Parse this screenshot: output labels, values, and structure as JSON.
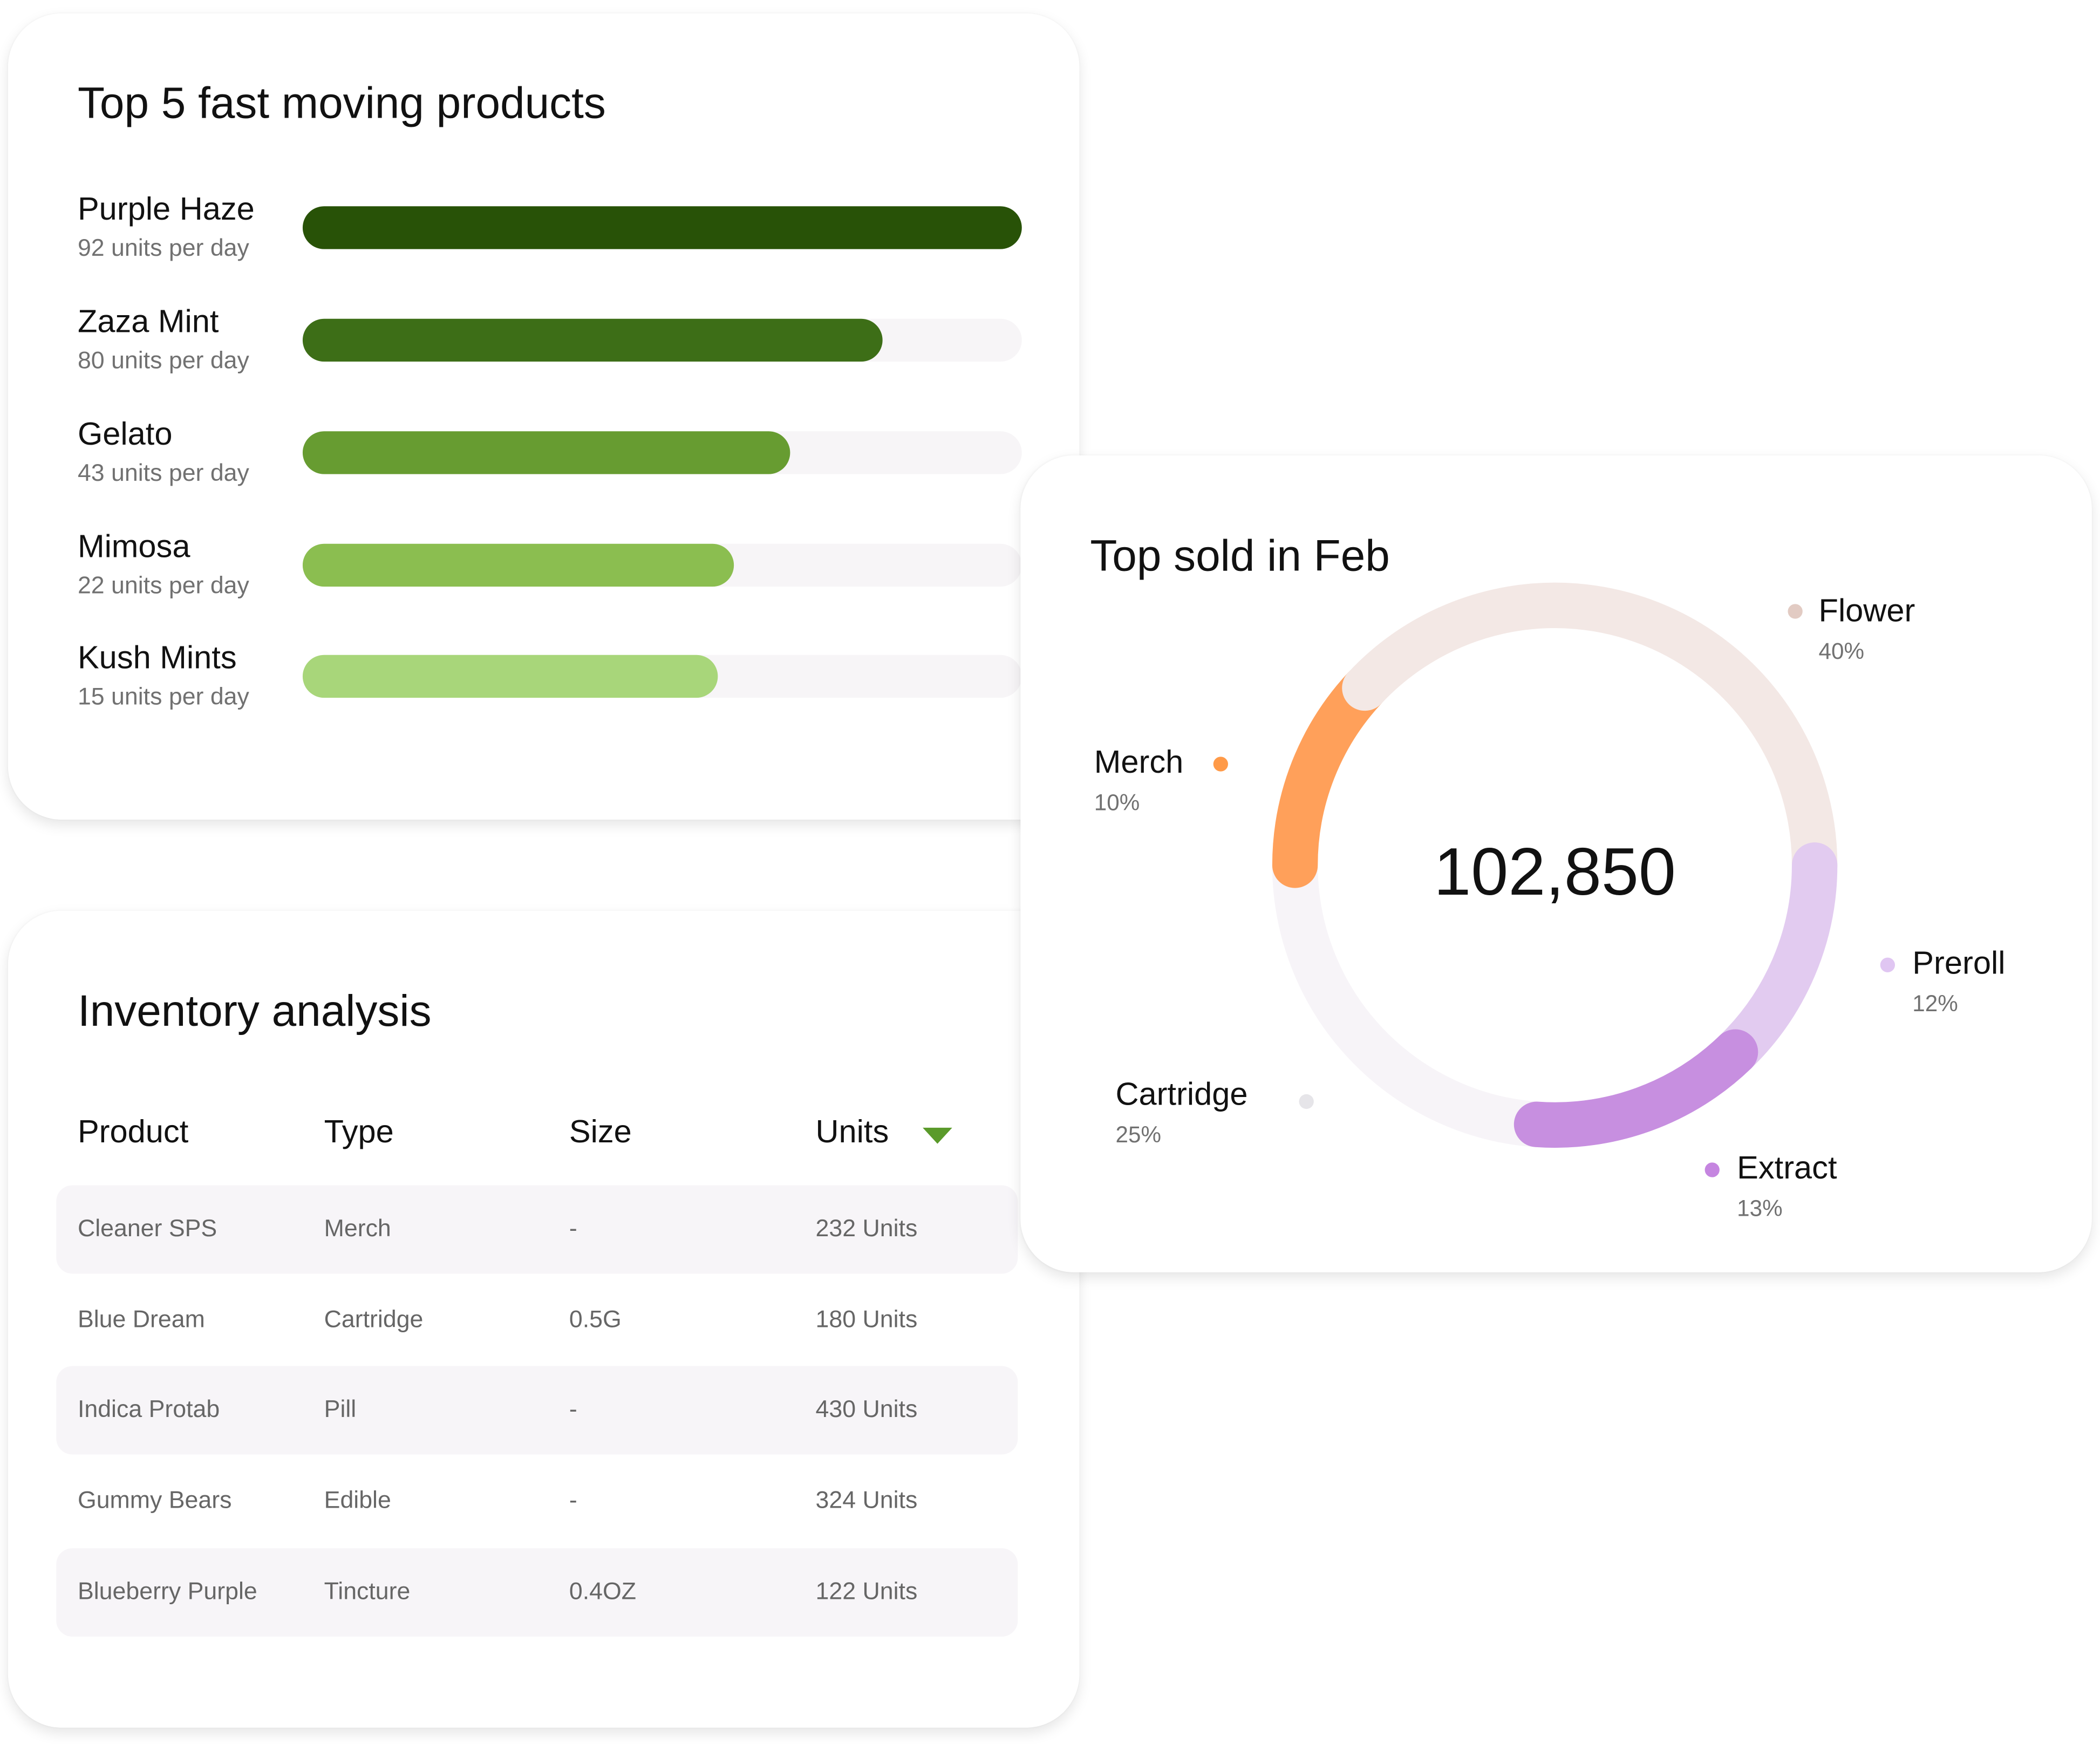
{
  "fast_moving": {
    "title": "Top 5 fast moving products",
    "products": [
      {
        "name": "Purple Haze",
        "rate": "92 units per day",
        "bar_fraction": 1.0,
        "color": "#285207"
      },
      {
        "name": "Zaza Mint",
        "rate": "80 units per day",
        "bar_fraction": 0.806,
        "color": "#3d6e17"
      },
      {
        "name": "Gelato",
        "rate": "43 units per day",
        "bar_fraction": 0.678,
        "color": "#679c31"
      },
      {
        "name": "Mimosa",
        "rate": "22 units per day",
        "bar_fraction": 0.6,
        "color": "#8bbe50"
      },
      {
        "name": "Kush Mints",
        "rate": "15 units per day",
        "bar_fraction": 0.577,
        "color": "#a8d67a"
      }
    ]
  },
  "inventory": {
    "title": "Inventory analysis",
    "columns": [
      "Product",
      "Type",
      "Size",
      "Units"
    ],
    "sort_icon": "caret-down-icon",
    "sort_color": "#5a9a2a",
    "rows": [
      [
        "Cleaner SPS",
        "Merch",
        "-",
        "232 Units"
      ],
      [
        "Blue Dream",
        "Cartridge",
        "0.5G",
        "180 Units"
      ],
      [
        "Indica Protab",
        "Pill",
        "-",
        "430 Units"
      ],
      [
        "Gummy Bears",
        "Edible",
        "-",
        "324 Units"
      ],
      [
        "Blueberry Purple",
        "Tincture",
        "0.4OZ",
        "122 Units"
      ]
    ]
  },
  "top_sold": {
    "title": "Top sold in Feb",
    "total": "102,850",
    "segments": [
      {
        "name": "Flower",
        "pct": "40%",
        "color": "#f3e8e5",
        "dot": "#e2cbc3"
      },
      {
        "name": "Merch",
        "pct": "10%",
        "color": "#ffa05a",
        "dot": "#ff9a48"
      },
      {
        "name": "Preroll",
        "pct": "12%",
        "color": "#e2cbf0",
        "dot": "#e0c6f2"
      },
      {
        "name": "Extract",
        "pct": "13%",
        "color": "#c78fe0",
        "dot": "#c585e0"
      },
      {
        "name": "Cartridge",
        "pct": "25%",
        "color": "#f7f4f8",
        "dot": "#e6e5e9"
      }
    ]
  }
}
